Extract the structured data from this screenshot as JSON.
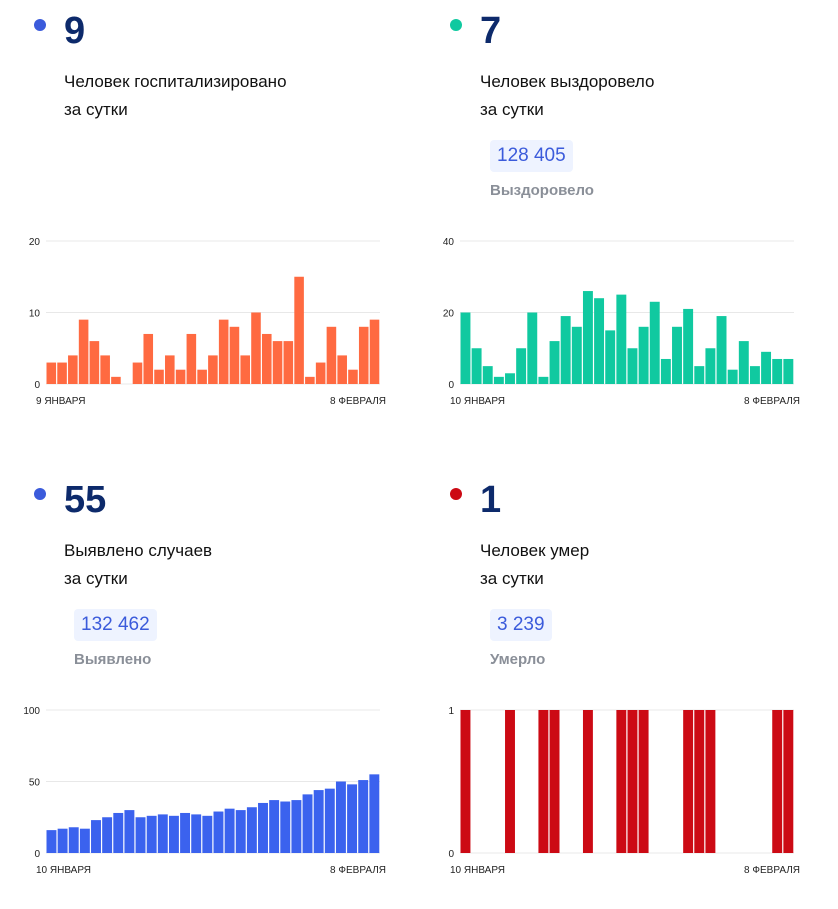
{
  "panels": [
    {
      "id": "hospitalized",
      "dot_color": "#3b5bdb",
      "count": "9",
      "line1": "Человек госпитализировано",
      "line2": "за сутки",
      "pill_value": null,
      "pill_label": null
    },
    {
      "id": "recovered",
      "dot_color": "#10c9a0",
      "count": "7",
      "line1": "Человек выздоровело",
      "line2": "за сутки",
      "pill_value": "128 405",
      "pill_label": "Выздоровело"
    },
    {
      "id": "cases",
      "dot_color": "#3b5bdb",
      "count": "55",
      "line1": "Выявлено случаев",
      "line2": "за сутки",
      "pill_value": "132 462",
      "pill_label": "Выявлено"
    },
    {
      "id": "deaths",
      "dot_color": "#cc0a14",
      "count": "1",
      "line1": "Человек умер",
      "line2": "за сутки",
      "pill_value": "3 239",
      "pill_label": "Умерло"
    }
  ],
  "chart_data": [
    {
      "type": "bar",
      "color": "#ff6a41",
      "y_ticks": [
        0,
        10,
        20
      ],
      "ylim": [
        0,
        20
      ],
      "x_start_label": "9 ЯНВАРЯ",
      "x_end_label": "8 ФЕВРАЛЯ",
      "values": [
        3,
        3,
        4,
        9,
        6,
        4,
        1,
        null,
        3,
        7,
        2,
        4,
        2,
        7,
        2,
        4,
        9,
        8,
        4,
        10,
        7,
        6,
        6,
        15,
        1,
        3,
        8,
        4,
        2,
        8,
        9
      ]
    },
    {
      "type": "bar",
      "color": "#10c9a0",
      "y_ticks": [
        0,
        20,
        40
      ],
      "ylim": [
        0,
        40
      ],
      "x_start_label": "10 ЯНВАРЯ",
      "x_end_label": "8 ФЕВРАЛЯ",
      "values": [
        20,
        10,
        5,
        2,
        3,
        10,
        20,
        2,
        12,
        19,
        16,
        26,
        24,
        15,
        25,
        10,
        16,
        23,
        7,
        16,
        21,
        5,
        10,
        19,
        4,
        12,
        5,
        9,
        7,
        7
      ]
    },
    {
      "type": "bar",
      "color": "#3b62ee",
      "y_ticks": [
        0,
        50,
        100
      ],
      "ylim": [
        0,
        100
      ],
      "x_start_label": "10 ЯНВАРЯ",
      "x_end_label": "8 ФЕВРАЛЯ",
      "values": [
        16,
        17,
        18,
        17,
        23,
        25,
        28,
        30,
        25,
        26,
        27,
        26,
        28,
        27,
        26,
        29,
        31,
        30,
        32,
        35,
        37,
        36,
        37,
        41,
        44,
        45,
        50,
        48,
        51,
        55
      ]
    },
    {
      "type": "bar",
      "color": "#cc0a14",
      "y_ticks": [
        0,
        1
      ],
      "ylim": [
        0,
        1
      ],
      "x_start_label": "10 ЯНВАРЯ",
      "x_end_label": "8 ФЕВРАЛЯ",
      "values": [
        1,
        0,
        0,
        0,
        1,
        0,
        0,
        1,
        1,
        0,
        0,
        1,
        0,
        0,
        1,
        1,
        1,
        0,
        0,
        0,
        1,
        1,
        1,
        0,
        0,
        0,
        0,
        0,
        1,
        1
      ]
    }
  ]
}
